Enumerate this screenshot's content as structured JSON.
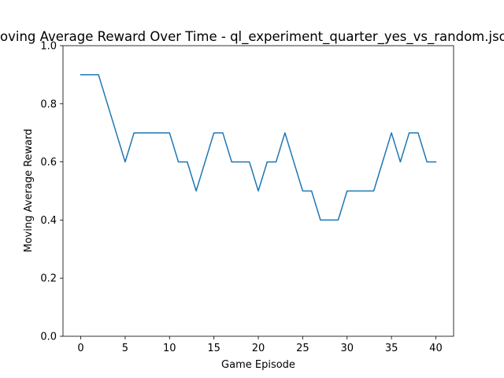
{
  "chart_data": {
    "type": "line",
    "title": "Moving Average Reward Over Time - ql_experiment_quarter_yes_vs_random.json",
    "xlabel": "Game Episode",
    "ylabel": "Moving Average Reward",
    "xlim": [
      -2,
      42
    ],
    "ylim": [
      0.0,
      1.0
    ],
    "xticks": [
      0,
      5,
      10,
      15,
      20,
      25,
      30,
      35,
      40
    ],
    "yticks": [
      0.0,
      0.2,
      0.4,
      0.6,
      0.8,
      1.0
    ],
    "xtick_labels": [
      "0",
      "5",
      "10",
      "15",
      "20",
      "25",
      "30",
      "35",
      "40"
    ],
    "ytick_labels": [
      "0.0",
      "0.2",
      "0.4",
      "0.6",
      "0.8",
      "1.0"
    ],
    "grid": false,
    "series": [
      {
        "color": "#1f77b4",
        "x": [
          0,
          1,
          2,
          3,
          4,
          5,
          6,
          7,
          8,
          9,
          10,
          11,
          12,
          13,
          14,
          15,
          16,
          17,
          18,
          19,
          20,
          21,
          22,
          23,
          24,
          25,
          26,
          27,
          28,
          29,
          30,
          31,
          32,
          33,
          34,
          35,
          36,
          37,
          38,
          39,
          40
        ],
        "y": [
          0.9,
          0.9,
          0.9,
          0.8,
          0.7,
          0.6,
          0.7,
          0.7,
          0.7,
          0.7,
          0.7,
          0.6,
          0.6,
          0.5,
          0.6,
          0.7,
          0.7,
          0.6,
          0.6,
          0.6,
          0.5,
          0.6,
          0.6,
          0.7,
          0.6,
          0.5,
          0.5,
          0.4,
          0.4,
          0.4,
          0.5,
          0.5,
          0.5,
          0.5,
          0.6,
          0.7,
          0.6,
          0.7,
          0.7,
          0.6,
          0.6
        ]
      }
    ]
  }
}
